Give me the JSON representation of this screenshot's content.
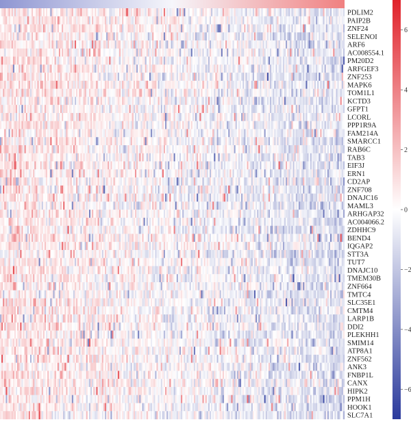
{
  "chart_data": {
    "type": "heatmap",
    "title": "",
    "xlabel": "",
    "ylabel": "",
    "genes": [
      "PDLIM2",
      "PAIP2B",
      "ZNF24",
      "SELENOI",
      "ARF6",
      "AC008554.1",
      "PM20D2",
      "ARFGEF3",
      "ZNF253",
      "MAPK6",
      "TOM1L1",
      "KCTD3",
      "GFPT1",
      "LCORL",
      "PPP1R9A",
      "FAM214A",
      "SMARCC1",
      "RAB6C",
      "TAB3",
      "EIF3J",
      "ERN1",
      "CD2AP",
      "ZNF708",
      "DNAJC16",
      "MAML3",
      "ARHGAP32",
      "AC004066.2",
      "ZDHHC9",
      "BEND4",
      "IQGAP2",
      "STT3A",
      "TUT7",
      "DNAJC10",
      "TMEM30B",
      "ZNF664",
      "TMTC4",
      "SLC35E1",
      "CMTM4",
      "LARP1B",
      "DDI2",
      "PLEKHH1",
      "SMIM14",
      "ATP8A1",
      "ZNF562",
      "ANK3",
      "FNBP1L",
      "CANX",
      "HIPK2",
      "PPM1H",
      "HOOK1",
      "SLC7A1"
    ],
    "sample_count": 240,
    "annotation_bar": {
      "low_color": "#8f96d2",
      "high_color": "#f08080"
    },
    "value_range": [
      -7,
      7
    ],
    "colorbar": {
      "ticks": [
        6,
        4,
        2,
        0,
        -2,
        -4,
        -6
      ],
      "tick_labels": [
        "6",
        "4",
        "2",
        "0",
        "−2",
        "−4",
        "−6"
      ],
      "colors": {
        "low": "#2b3a9c",
        "mid": "#ffffff",
        "high": "#e0222a"
      }
    },
    "trend": "values decrease from left (red, positive) to right (blue, negative)"
  }
}
